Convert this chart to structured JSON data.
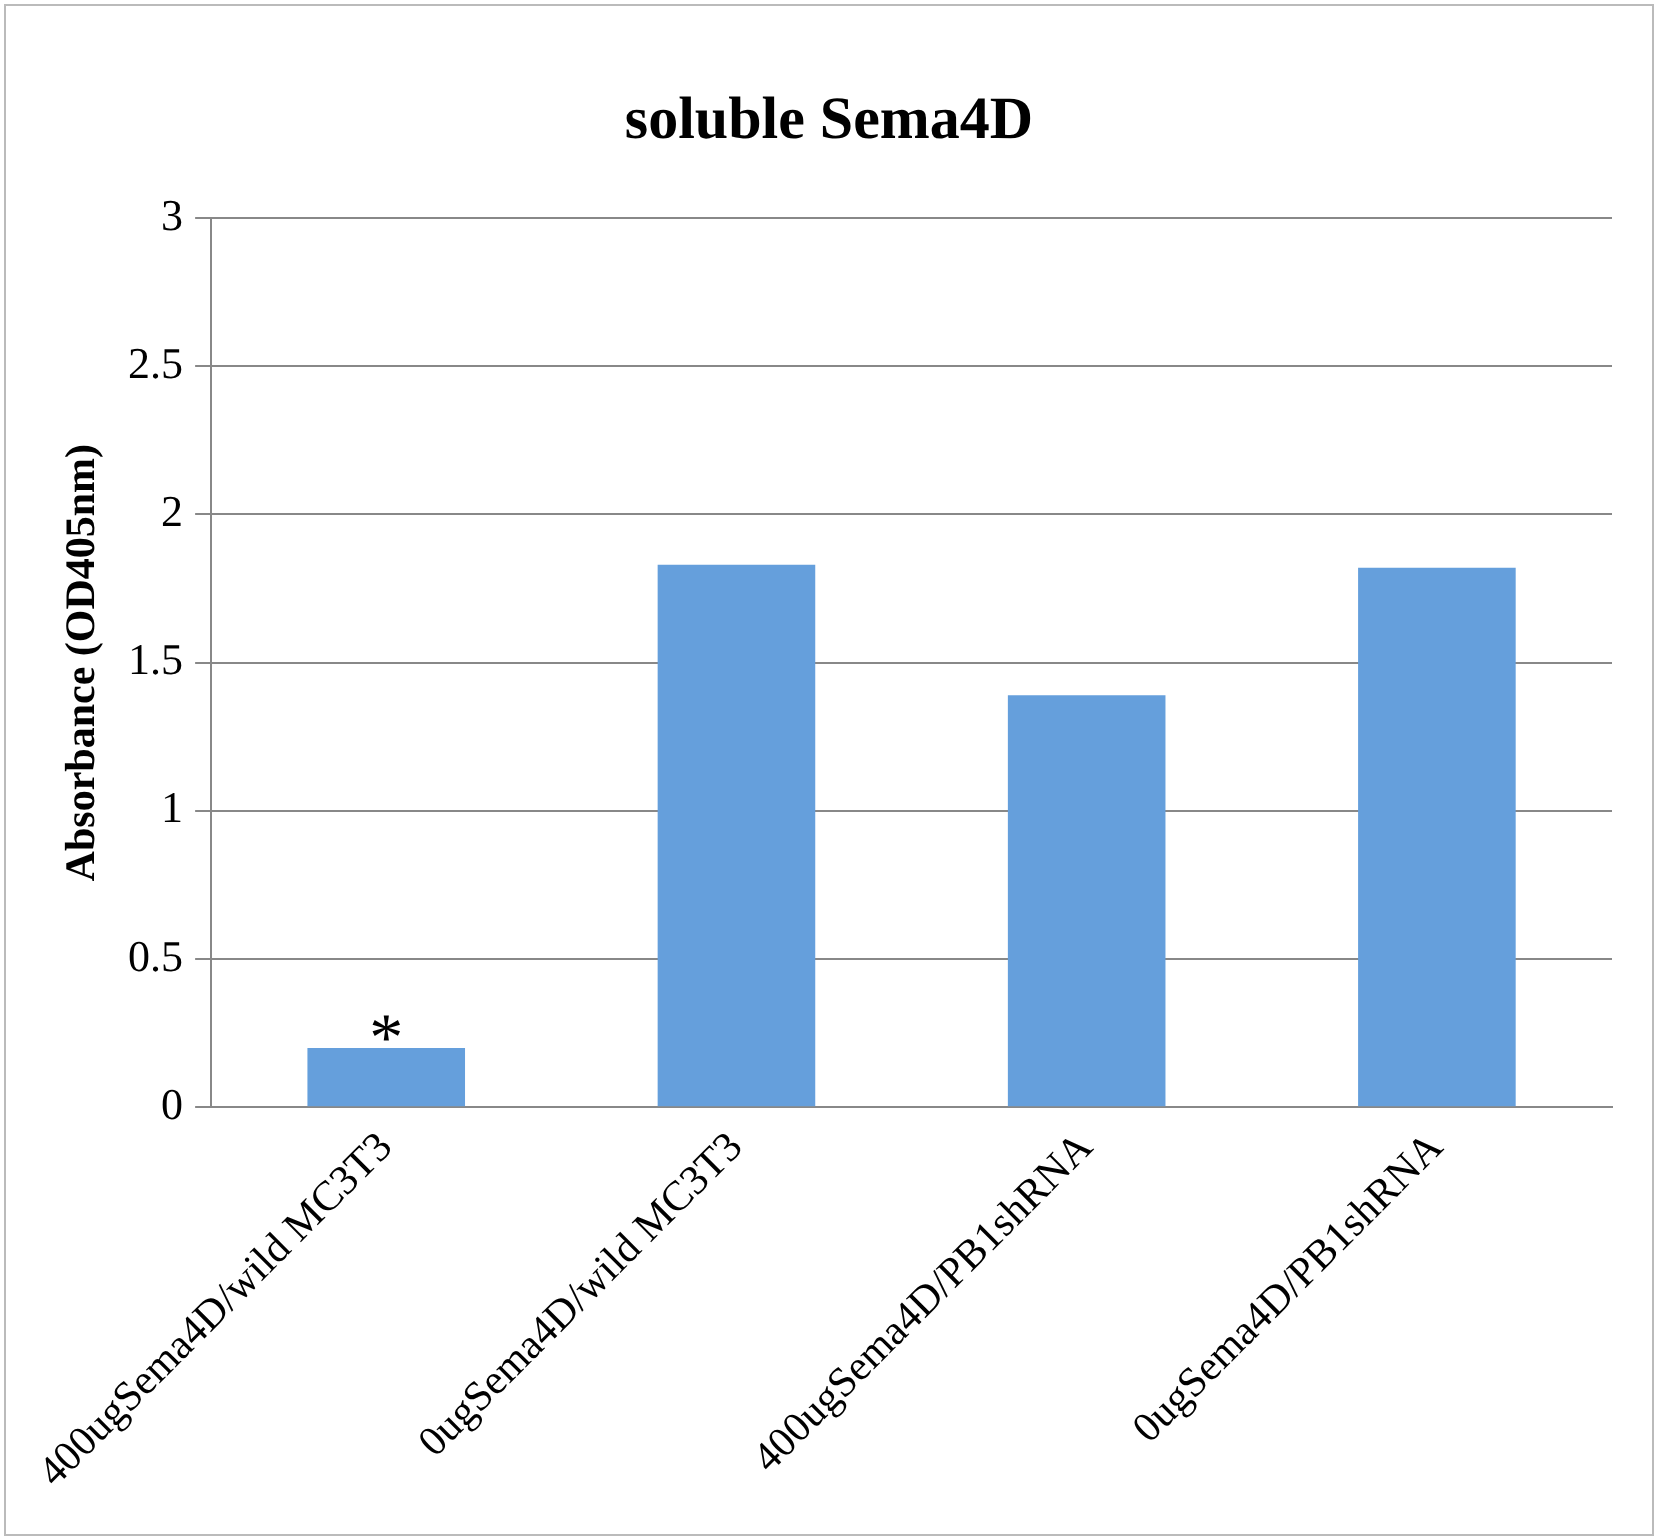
{
  "chart_data": {
    "type": "bar",
    "title": "soluble Sema4D",
    "ylabel": "Absorbance (OD405nm)",
    "categories": [
      "400ugSema4D/wild MC3T3",
      "0ugSema4D/wild MC3T3",
      "400ugSema4D/PB1shRNA",
      "0ugSema4D/PB1shRNA"
    ],
    "values": [
      0.2,
      1.83,
      1.39,
      1.82
    ],
    "color": "#659fdc",
    "ylim": [
      0,
      3
    ],
    "yticks": [
      0,
      0.5,
      1,
      1.5,
      2,
      2.5,
      3
    ],
    "grid": "y",
    "annotations": [
      {
        "text": "*",
        "x": "400ugSema4D/wild MC3T3",
        "y": 0.2
      }
    ]
  }
}
